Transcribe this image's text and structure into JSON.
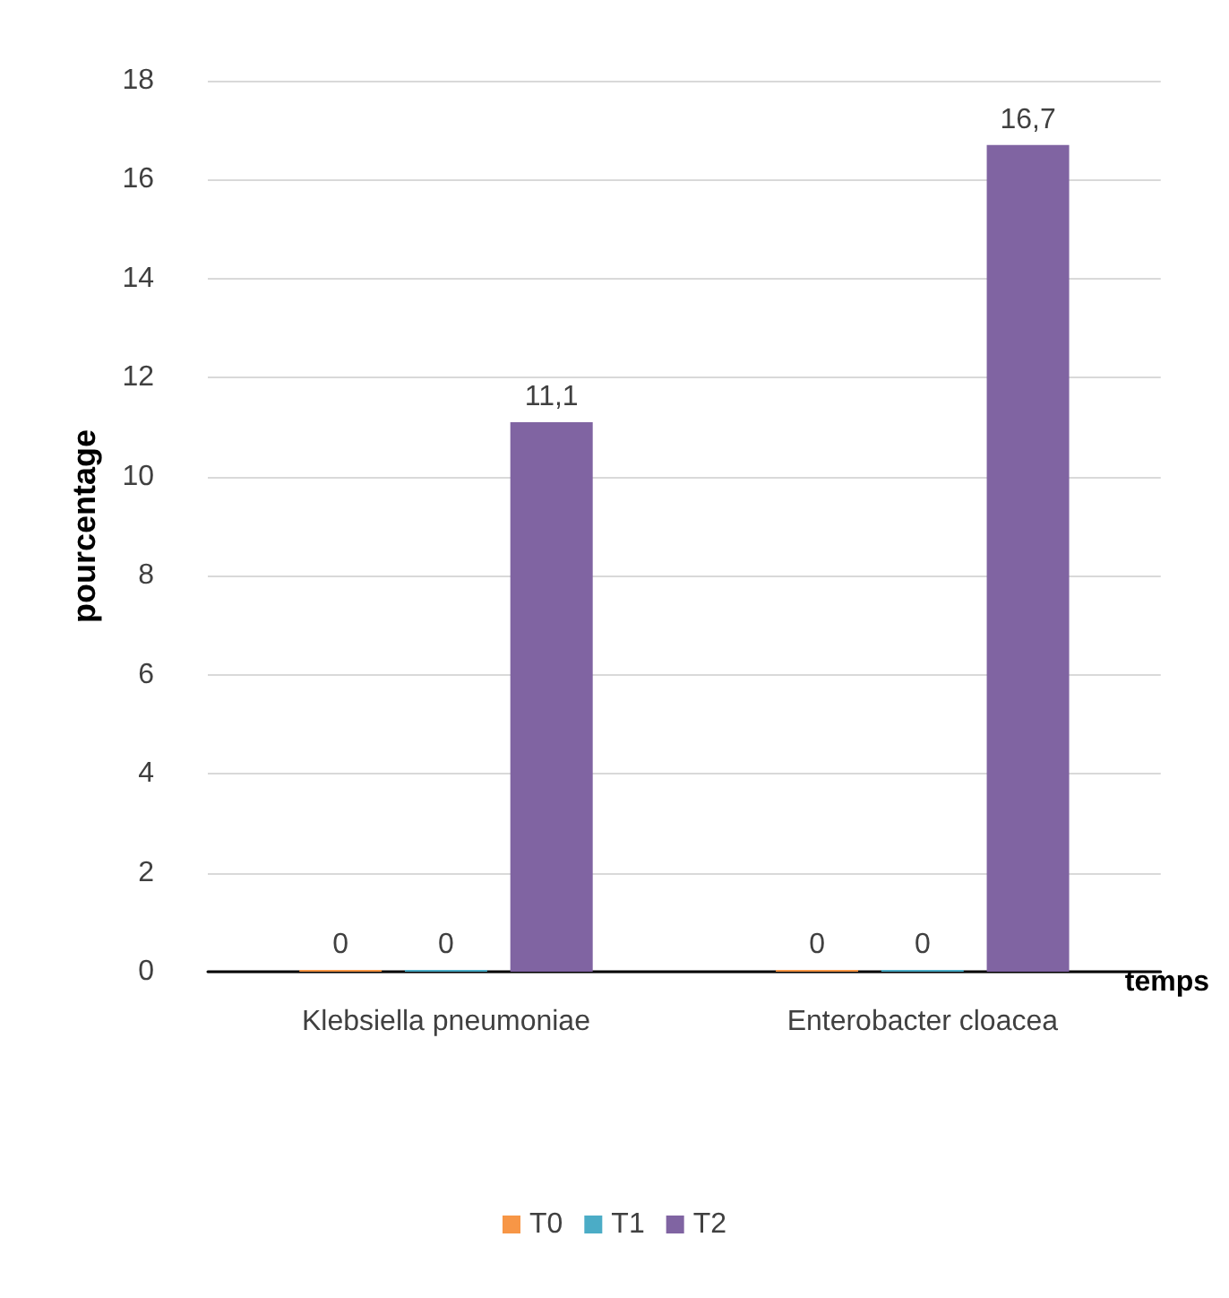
{
  "chart_data": {
    "type": "bar",
    "xlabel": "temps",
    "ylabel": "pourcentage",
    "categories": [
      "Klebsiella pneumoniae",
      "Enterobacter cloacea"
    ],
    "series": [
      {
        "name": "T0",
        "color": "#f79646",
        "values": [
          0,
          0
        ],
        "value_labels": [
          "0",
          "0"
        ]
      },
      {
        "name": "T1",
        "color": "#4bacc6",
        "values": [
          0,
          0
        ],
        "value_labels": [
          "0",
          "0"
        ]
      },
      {
        "name": "T2",
        "color": "#8064a2",
        "values": [
          11.1,
          16.7
        ],
        "value_labels": [
          "11,1",
          "16,7"
        ]
      }
    ],
    "ylim": [
      0,
      18
    ],
    "yticks": [
      0,
      2,
      4,
      6,
      8,
      10,
      12,
      14,
      16,
      18
    ],
    "grid": "y",
    "legend": "bottom"
  }
}
